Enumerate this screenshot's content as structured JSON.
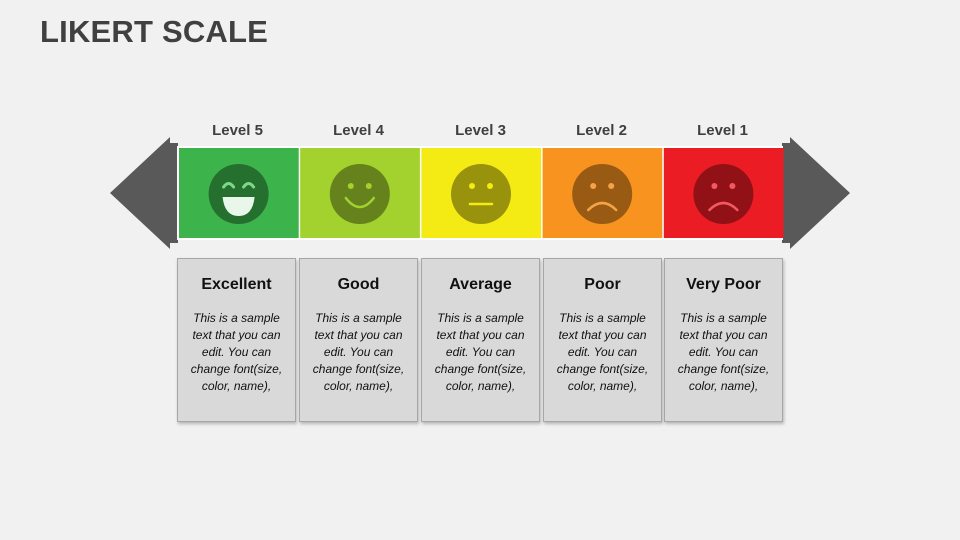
{
  "title": "LIKERT SCALE",
  "levels": [
    {
      "label": "Level 5",
      "rating": "Excellent",
      "text": "This is a sample text that you can edit. You can change font(size, color, name),",
      "color": "#3cb44b",
      "face": "laughing-face-icon"
    },
    {
      "label": "Level 4",
      "rating": "Good",
      "text": "This is a sample text that you can edit. You can change font(size, color, name),",
      "color": "#a3d12e",
      "face": "smiling-face-icon"
    },
    {
      "label": "Level 3",
      "rating": "Average",
      "text": "This is a sample text that you can edit. You can change font(size, color, name),",
      "color": "#f5eb14",
      "face": "neutral-face-icon"
    },
    {
      "label": "Level 2",
      "rating": "Poor",
      "text": "This is a sample text that you can edit. You can change font(size, color, name),",
      "color": "#f7931e",
      "face": "frowning-face-icon"
    },
    {
      "label": "Level 1",
      "rating": "Very Poor",
      "text": "This is a sample text that you can edit. You can change font(size, color, name),",
      "color": "#ec1c24",
      "face": "sad-face-icon"
    }
  ],
  "arrow_color": "#595959"
}
